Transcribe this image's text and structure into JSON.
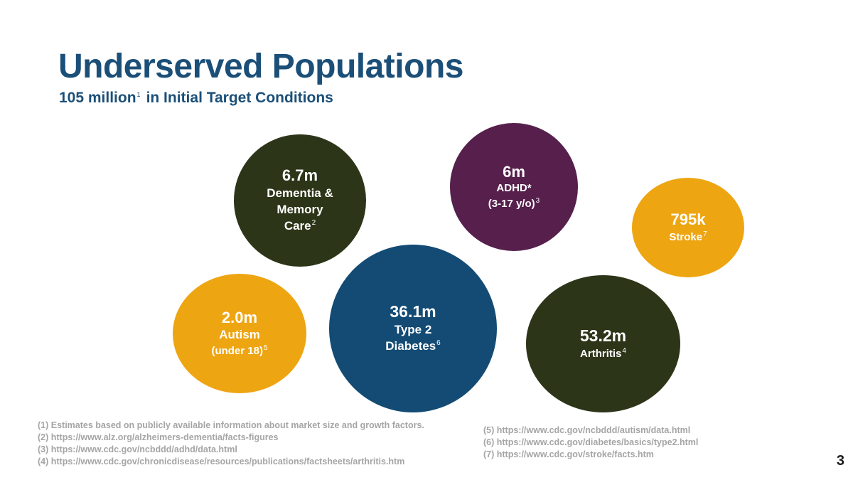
{
  "title": "Underserved Populations",
  "subtitle": {
    "text": "105 million",
    "ref": "1",
    "rest": "in Initial Target Conditions"
  },
  "bubbles": {
    "dementia": {
      "value": "6.7m",
      "line1": "Dementia &",
      "line2": "Memory",
      "line3": "Care",
      "ref": "2",
      "color": "#2c3518"
    },
    "adhd": {
      "value": "6m",
      "line1": "ADHD*",
      "line2": "(3-17 y/o)",
      "ref": "3",
      "color": "#561f4c"
    },
    "stroke": {
      "value": "795k",
      "line1": "Stroke",
      "ref": "7",
      "color": "#eea512"
    },
    "autism": {
      "value": "2.0m",
      "line1": "Autism",
      "line2": "(under 18)",
      "ref": "5",
      "color": "#eea512"
    },
    "diabetes": {
      "value": "36.1m",
      "line1": "Type 2",
      "line2": "Diabetes",
      "ref": "6",
      "color": "#134b74"
    },
    "arthritis": {
      "value": "53.2m",
      "line1": "Arthritis",
      "ref": "4",
      "color": "#2c3518"
    }
  },
  "footnotes_left": [
    "(1) Estimates based on publicly available information about market size and growth factors.",
    "(2) https://www.alz.org/alzheimers-dementia/facts-figures",
    "(3)  https://www.cdc.gov/ncbddd/adhd/data.html",
    "(4) https://www.cdc.gov/chronicdisease/resources/publications/factsheets/arthritis.htm"
  ],
  "footnotes_right": [
    "(5) https://www.cdc.gov/ncbddd/autism/data.html",
    "(6) https://www.cdc.gov/diabetes/basics/type2.html",
    "(7) https://www.cdc.gov/stroke/facts.htm"
  ],
  "page_number": "3"
}
